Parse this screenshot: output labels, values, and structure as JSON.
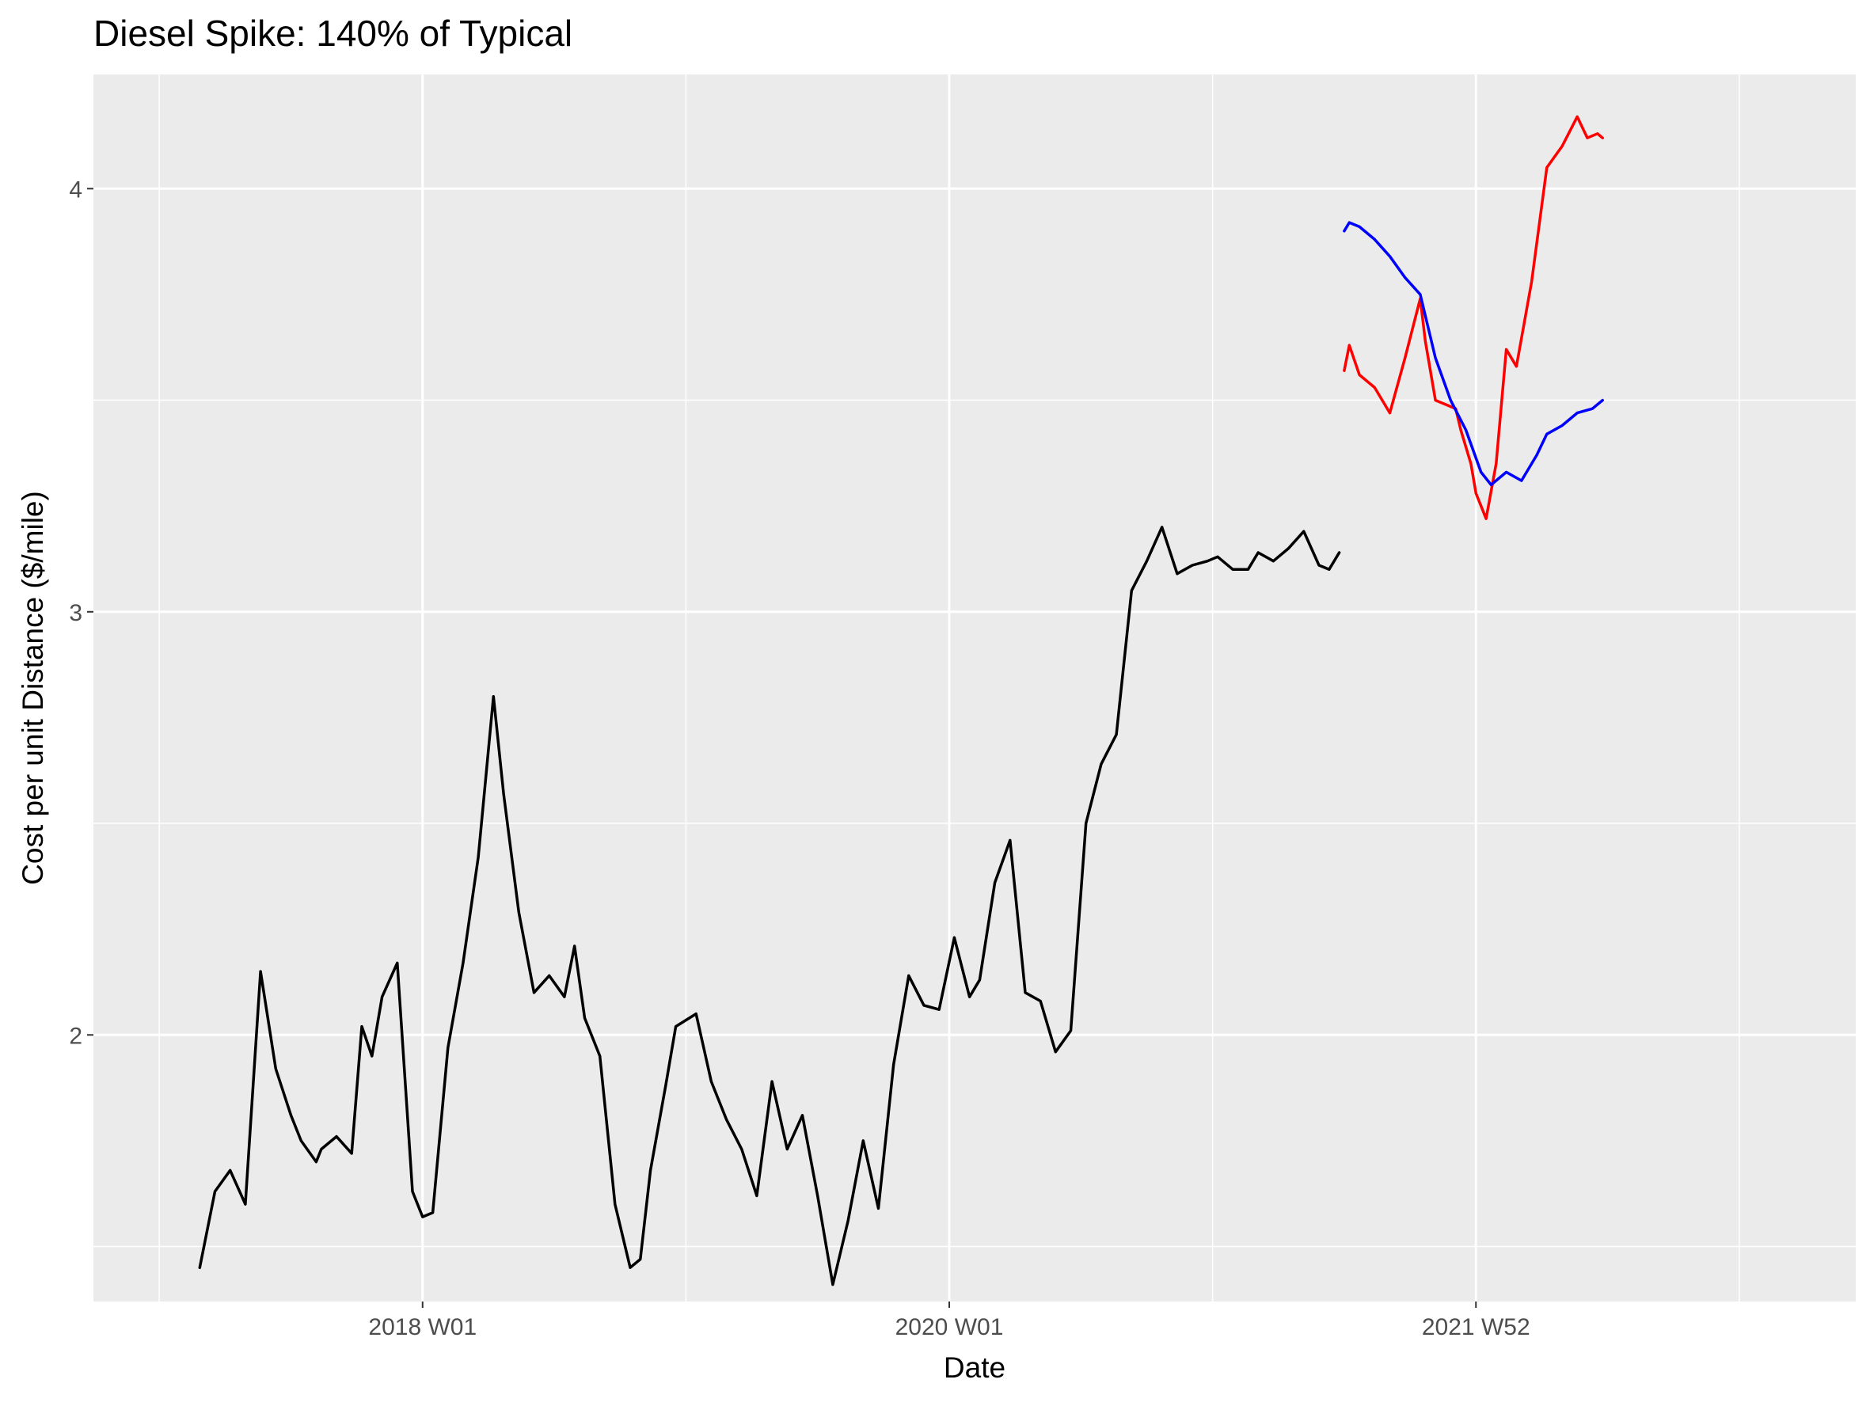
{
  "chart_data": {
    "type": "line",
    "title": "Diesel Spike: 140% of Typical",
    "xlabel": "Date",
    "ylabel": "Cost per unit Distance ($/mile)",
    "xlim": [
      "2016-10-03",
      "2023-06-05"
    ],
    "ylim": [
      1.37,
      4.27
    ],
    "x_ticks": [
      {
        "label": "2018 W01",
        "date": "2018-01-01"
      },
      {
        "label": "2020 W01",
        "date": "2019-12-30"
      },
      {
        "label": "2021 W52",
        "date": "2021-12-27"
      }
    ],
    "y_ticks": [
      2,
      3,
      4
    ],
    "grid": true,
    "series": [
      {
        "color": "#000000",
        "x": [
          "2017-02-27",
          "2017-03-20",
          "2017-04-10",
          "2017-05-01",
          "2017-05-22",
          "2017-06-12",
          "2017-07-03",
          "2017-07-17",
          "2017-08-07",
          "2017-08-14",
          "2017-09-04",
          "2017-09-25",
          "2017-10-09",
          "2017-10-23",
          "2017-11-06",
          "2017-11-27",
          "2017-12-18",
          "2018-01-01",
          "2018-01-15",
          "2018-02-05",
          "2018-02-26",
          "2018-03-19",
          "2018-04-09",
          "2018-04-23",
          "2018-05-14",
          "2018-06-04",
          "2018-06-25",
          "2018-07-16",
          "2018-07-30",
          "2018-08-13",
          "2018-09-03",
          "2018-09-24",
          "2018-10-15",
          "2018-10-29",
          "2018-11-12",
          "2018-12-03",
          "2018-12-17",
          "2019-01-14",
          "2019-02-04",
          "2019-02-25",
          "2019-03-18",
          "2019-04-08",
          "2019-04-29",
          "2019-05-20",
          "2019-06-10",
          "2019-07-01",
          "2019-07-22",
          "2019-08-12",
          "2019-09-02",
          "2019-09-23",
          "2019-10-14",
          "2019-11-04",
          "2019-11-25",
          "2019-12-16",
          "2020-01-06",
          "2020-01-27",
          "2020-02-10",
          "2020-03-02",
          "2020-03-23",
          "2020-04-13",
          "2020-05-04",
          "2020-05-25",
          "2020-06-15",
          "2020-07-06",
          "2020-07-27",
          "2020-08-17",
          "2020-09-07",
          "2020-09-28",
          "2020-10-19",
          "2020-11-09",
          "2020-11-30",
          "2020-12-21",
          "2021-01-04",
          "2021-01-25",
          "2021-02-15",
          "2021-03-01",
          "2021-03-22",
          "2021-04-12",
          "2021-05-03",
          "2021-05-24",
          "2021-06-07",
          "2021-06-21"
        ],
        "y": [
          1.45,
          1.63,
          1.68,
          1.6,
          2.15,
          1.92,
          1.81,
          1.75,
          1.7,
          1.73,
          1.76,
          1.72,
          2.02,
          1.95,
          2.09,
          2.17,
          1.63,
          1.57,
          1.58,
          1.97,
          2.17,
          2.42,
          2.8,
          2.57,
          2.29,
          2.1,
          2.14,
          2.09,
          2.21,
          2.04,
          1.95,
          1.6,
          1.45,
          1.47,
          1.68,
          1.88,
          2.02,
          2.05,
          1.89,
          1.8,
          1.73,
          1.62,
          1.89,
          1.73,
          1.81,
          1.62,
          1.41,
          1.56,
          1.75,
          1.59,
          1.93,
          2.14,
          2.07,
          2.06,
          2.23,
          2.09,
          2.13,
          2.36,
          2.46,
          2.1,
          2.08,
          1.96,
          2.01,
          2.5,
          2.64,
          2.71,
          3.05,
          3.12,
          3.2,
          3.09,
          3.11,
          3.12,
          3.13,
          3.1,
          3.1,
          3.14,
          3.12,
          3.15,
          3.19,
          3.11,
          3.1,
          3.14
        ]
      },
      {
        "color": "#ff0000",
        "x": [
          "2021-06-28",
          "2021-07-05",
          "2021-07-19",
          "2021-08-09",
          "2021-08-30",
          "2021-09-20",
          "2021-10-11",
          "2021-10-18",
          "2021-11-01",
          "2021-11-15",
          "2021-11-29",
          "2021-12-06",
          "2021-12-20",
          "2021-12-27",
          "2022-01-10",
          "2022-01-24",
          "2022-02-07",
          "2022-02-21",
          "2022-03-14",
          "2022-04-04",
          "2022-04-25",
          "2022-05-16",
          "2022-05-30",
          "2022-06-13",
          "2022-06-20"
        ],
        "y": [
          3.57,
          3.63,
          3.56,
          3.53,
          3.47,
          3.6,
          3.74,
          3.64,
          3.5,
          3.49,
          3.48,
          3.43,
          3.35,
          3.28,
          3.22,
          3.35,
          3.62,
          3.58,
          3.78,
          4.05,
          4.1,
          4.17,
          4.12,
          4.13,
          4.12
        ]
      },
      {
        "color": "#0000ff",
        "x": [
          "2021-06-28",
          "2021-07-05",
          "2021-07-19",
          "2021-08-09",
          "2021-08-30",
          "2021-09-20",
          "2021-10-11",
          "2021-11-01",
          "2021-11-22",
          "2021-12-13",
          "2022-01-03",
          "2022-01-17",
          "2022-02-07",
          "2022-02-28",
          "2022-03-21",
          "2022-04-04",
          "2022-04-25",
          "2022-05-16",
          "2022-06-06",
          "2022-06-20"
        ],
        "y": [
          3.9,
          3.92,
          3.91,
          3.88,
          3.84,
          3.79,
          3.75,
          3.6,
          3.5,
          3.43,
          3.33,
          3.3,
          3.33,
          3.31,
          3.37,
          3.42,
          3.44,
          3.47,
          3.48,
          3.5
        ]
      }
    ]
  }
}
